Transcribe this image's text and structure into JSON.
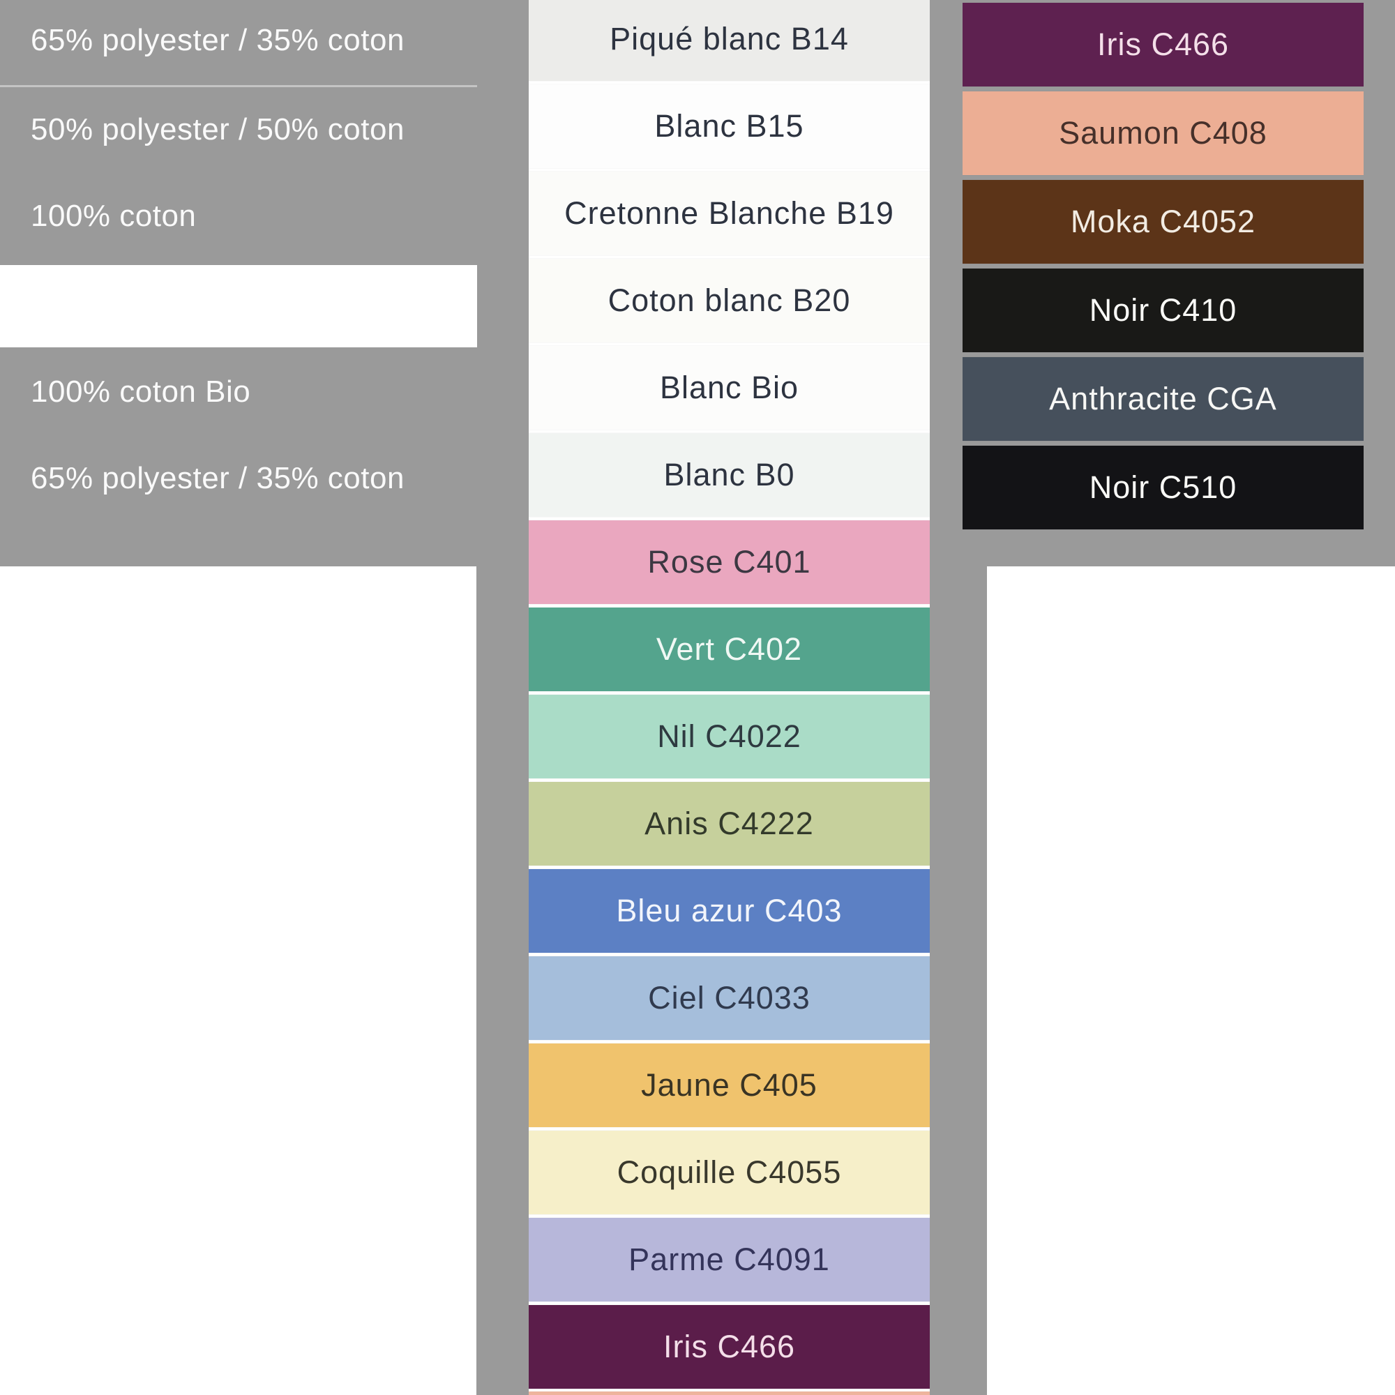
{
  "page": {
    "background_gray": "#9a9a9a",
    "page_white": "#ffffff",
    "divider_color": "#c4c4c4",
    "left_text_color": "#fafafa"
  },
  "left_panel": {
    "rows": [
      {
        "label": "65% polyester / 35% coton"
      },
      {
        "label": "50% polyester / 50% coton"
      },
      {
        "label": "100% coton"
      },
      {
        "label": "100% coton Bio"
      },
      {
        "label": "65% polyester / 35% coton"
      }
    ]
  },
  "middle_column": {
    "swatches": [
      {
        "name": "Piqué blanc B14",
        "color": "#ececea",
        "text_color": "#2d3340",
        "texture": "ribbed"
      },
      {
        "name": "Blanc B15",
        "color": "#fdfdfd",
        "text_color": "#2d3340"
      },
      {
        "name": "Cretonne Blanche B19",
        "color": "#fbfbf9",
        "text_color": "#2d3340"
      },
      {
        "name": "Coton blanc B20",
        "color": "#fbfbf8",
        "text_color": "#2d3340"
      },
      {
        "name": "Blanc Bio",
        "color": "#fcfcfb",
        "text_color": "#2d3340"
      },
      {
        "name": "Blanc B0",
        "color": "#f1f4f2",
        "text_color": "#2d3340"
      },
      {
        "name": "Rose C401",
        "color": "#eaa7bf",
        "text_color": "#3c3842"
      },
      {
        "name": "Vert C402",
        "color": "#54a48d",
        "text_color": "#f0f8f4"
      },
      {
        "name": "Nil C4022",
        "color": "#aadcc7",
        "text_color": "#2e3a40"
      },
      {
        "name": "Anis C4222",
        "color": "#c6d09c",
        "text_color": "#333a2b"
      },
      {
        "name": "Bleu azur C403",
        "color": "#5c80c4",
        "text_color": "#f2f5fb"
      },
      {
        "name": "Ciel C4033",
        "color": "#a5bedb",
        "text_color": "#303a4e"
      },
      {
        "name": "Jaune C405",
        "color": "#f0c36d",
        "text_color": "#3a3424",
        "texture": "twill"
      },
      {
        "name": "Coquille C4055",
        "color": "#f6efc9",
        "text_color": "#39382c"
      },
      {
        "name": "Parme C4091",
        "color": "#b7b7da",
        "text_color": "#34345a"
      },
      {
        "name": "Iris C466",
        "color": "#5b1d4a",
        "text_color": "#f4dfe9"
      },
      {
        "name": "",
        "color": "#eeb49d"
      }
    ]
  },
  "right_column": {
    "swatches": [
      {
        "name": "Iris C466",
        "color": "#5e2150",
        "text_color": "#f4dfe9"
      },
      {
        "name": "Saumon C408",
        "color": "#ecae94",
        "text_color": "#46302a"
      },
      {
        "name": "Moka C4052",
        "color": "#5c3418",
        "text_color": "#f2ece3"
      },
      {
        "name": "Noir C410",
        "color": "#191917",
        "text_color": "#fafaf7"
      },
      {
        "name": "Anthracite CGA",
        "color": "#46505c",
        "text_color": "#f7f7f5"
      },
      {
        "name": "Noir C510",
        "color": "#131316",
        "text_color": "#fafaf7"
      }
    ]
  }
}
